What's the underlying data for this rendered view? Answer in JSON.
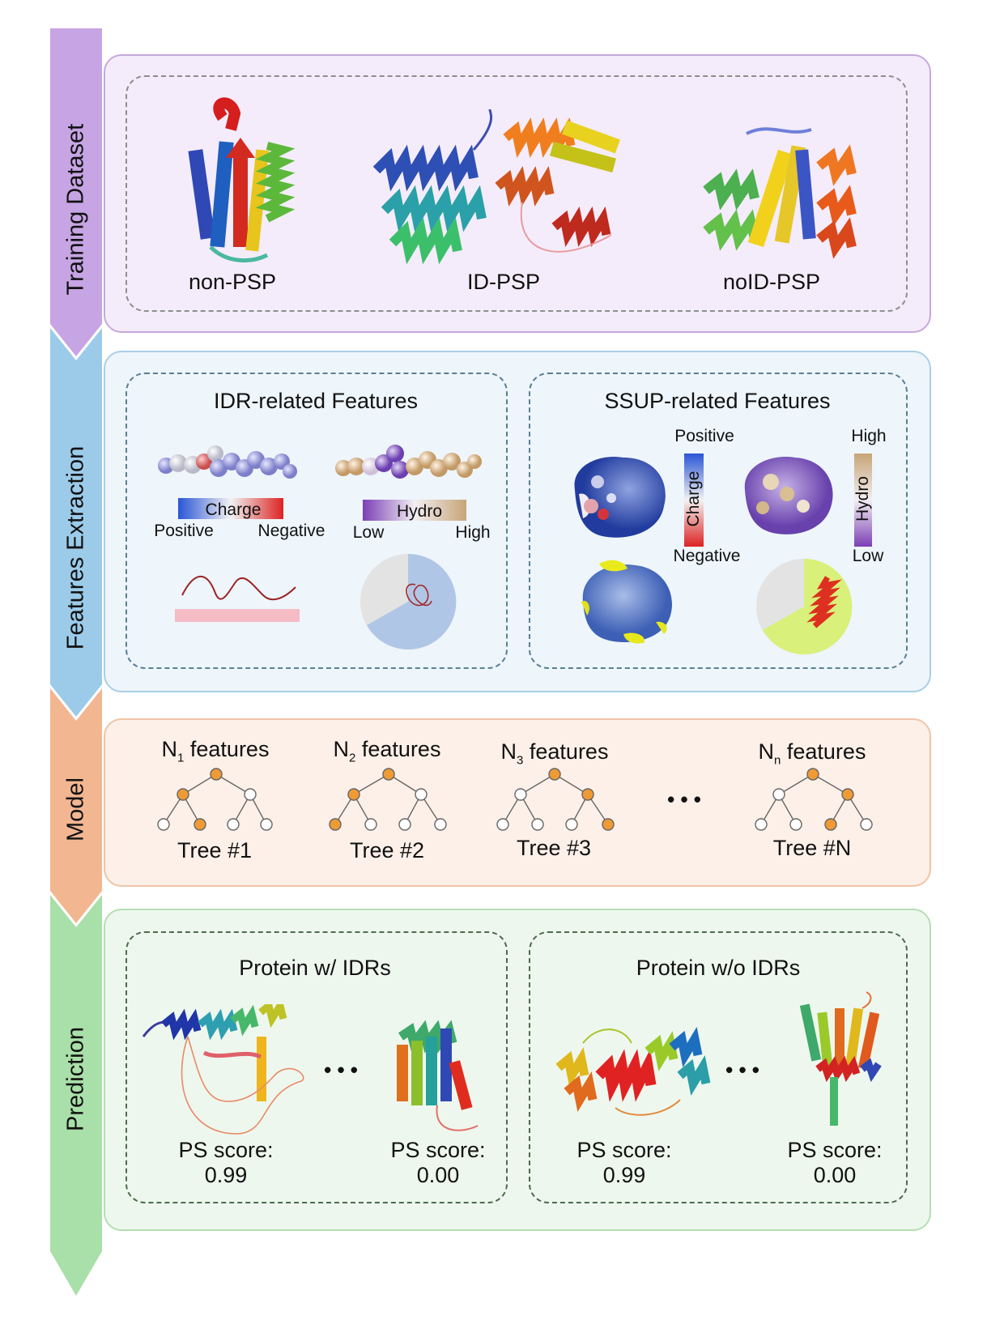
{
  "stages": [
    {
      "label": "Training Dataset",
      "color": "#c7a4e4"
    },
    {
      "label": "Features Extraction",
      "color": "#9ccbea"
    },
    {
      "label": "Model",
      "color": "#f2b691"
    },
    {
      "label": "Prediction",
      "color": "#a9dfa9"
    }
  ],
  "training": {
    "items": [
      "non-PSP",
      "ID-PSP",
      "noID-PSP"
    ]
  },
  "features": {
    "idr": {
      "title": "IDR-related Features",
      "charge_label": "Charge",
      "charge_left": "Positive",
      "charge_right": "Negative",
      "hydro_label": "Hydro",
      "hydro_left": "Low",
      "hydro_right": "High"
    },
    "ssup": {
      "title": "SSUP-related Features",
      "charge_top": "Positive",
      "charge_label": "Charge",
      "charge_bottom": "Negative",
      "hydro_top": "High",
      "hydro_label": "Hydro",
      "hydro_bottom": "Low"
    }
  },
  "model": {
    "trees": [
      {
        "feat_prefix": "N",
        "feat_sub": "1",
        "feat_suffix": " features",
        "name": "Tree #1"
      },
      {
        "feat_prefix": "N",
        "feat_sub": "2",
        "feat_suffix": " features",
        "name": "Tree #2"
      },
      {
        "feat_prefix": "N",
        "feat_sub": "3",
        "feat_suffix": " features",
        "name": "Tree #3"
      },
      {
        "feat_prefix": "N",
        "feat_sub": "n",
        "feat_suffix": " features",
        "name": "Tree #N"
      }
    ],
    "ellipsis": "• • •"
  },
  "prediction": {
    "groups": [
      {
        "title": "Protein w/ IDRs",
        "scores": [
          {
            "label": "PS score:",
            "value": "0.99"
          },
          {
            "label": "PS score:",
            "value": "0.00"
          }
        ]
      },
      {
        "title": "Protein w/o IDRs",
        "scores": [
          {
            "label": "PS score:",
            "value": "0.99"
          },
          {
            "label": "PS score:",
            "value": "0.00"
          }
        ]
      }
    ],
    "ellipsis": "• • •"
  }
}
